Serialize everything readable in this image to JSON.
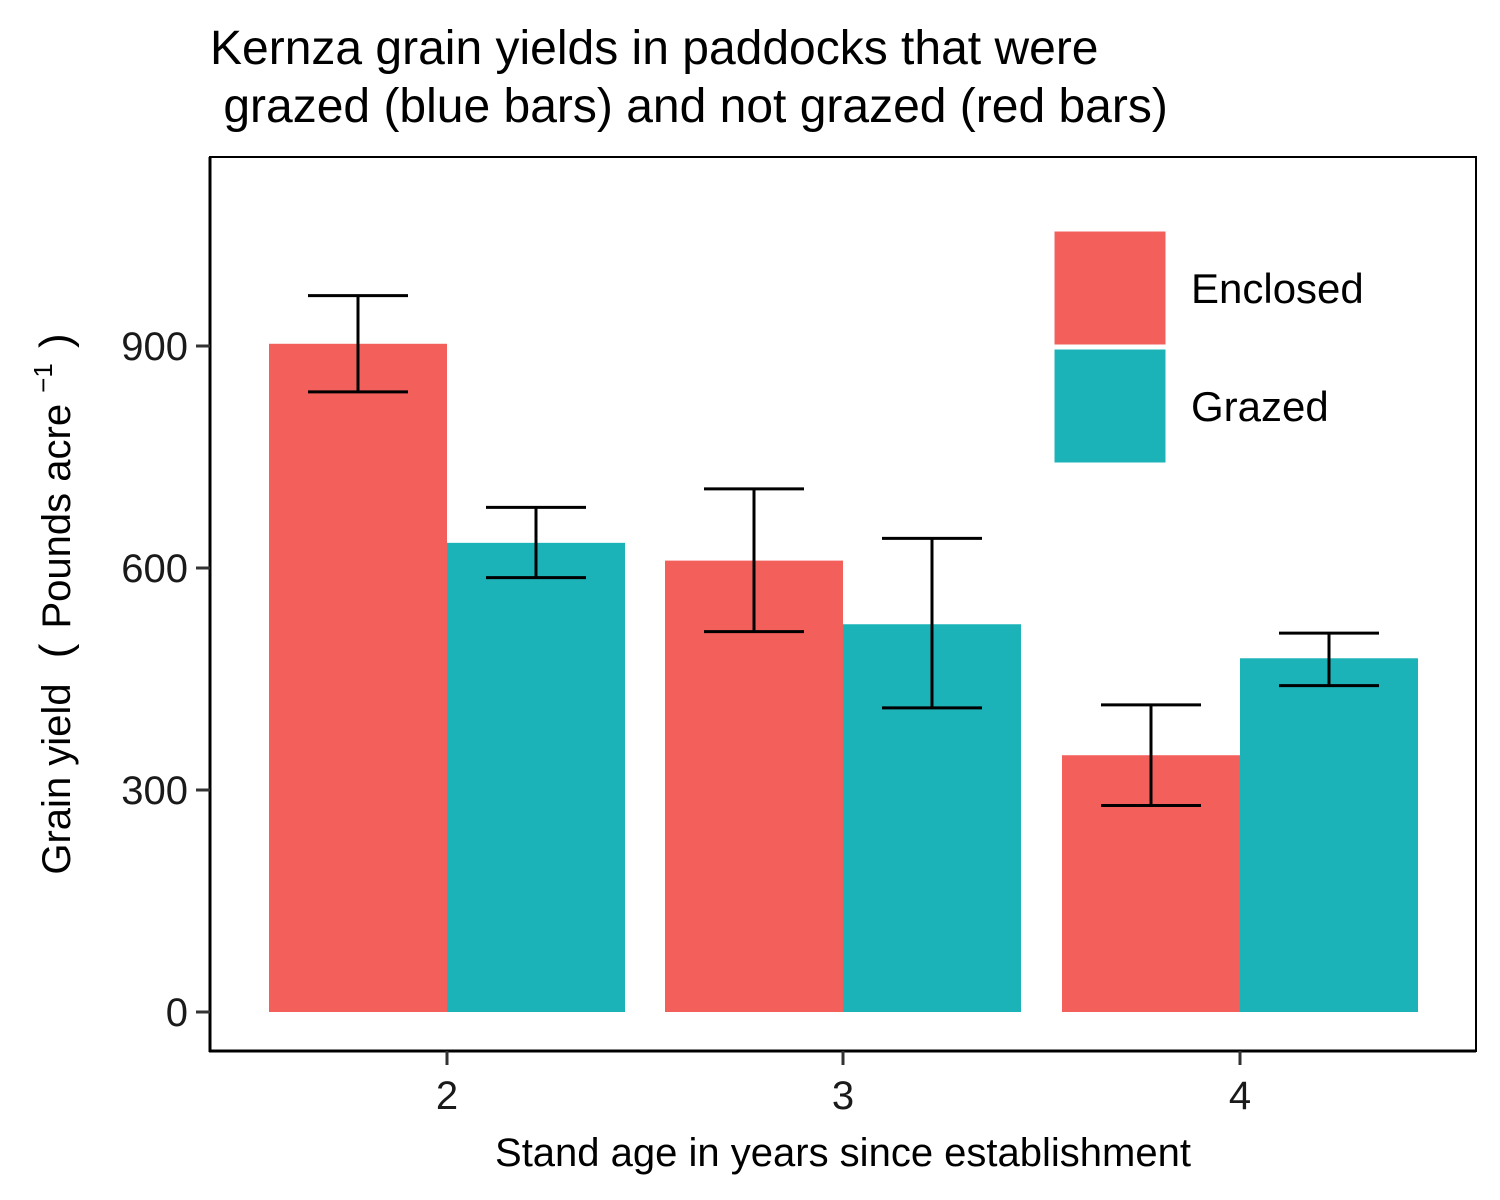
{
  "chart_data": {
    "type": "bar",
    "title_lines": [
      "Kernza grain yields in paddocks that were",
      " grazed (blue bars) and not grazed (red bars)"
    ],
    "xlabel": "Stand age in years since establishment",
    "ylabel": {
      "main": "Grain yield",
      "unit_open": "(",
      "unit_text": "Pounds acre",
      "unit_sup": "−1",
      "unit_close": ")"
    },
    "categories": [
      "2",
      "3",
      "4"
    ],
    "ylim": [
      -55,
      1155
    ],
    "yticks": [
      0,
      300,
      600,
      900
    ],
    "ytick_labels": [
      "0",
      "300",
      "600",
      "900"
    ],
    "series": [
      {
        "name": "Enclosed",
        "color": "#f3605c",
        "values": [
          903,
          610,
          347
        ],
        "error_low": [
          838,
          514,
          279
        ],
        "error_high": [
          968,
          707,
          415
        ]
      },
      {
        "name": "Grazed",
        "color": "#1bb3b7",
        "values": [
          634,
          524,
          478
        ],
        "error_low": [
          587,
          411,
          441
        ],
        "error_high": [
          682,
          640,
          512
        ]
      }
    ],
    "legend_position": "top-right",
    "grid": false
  }
}
